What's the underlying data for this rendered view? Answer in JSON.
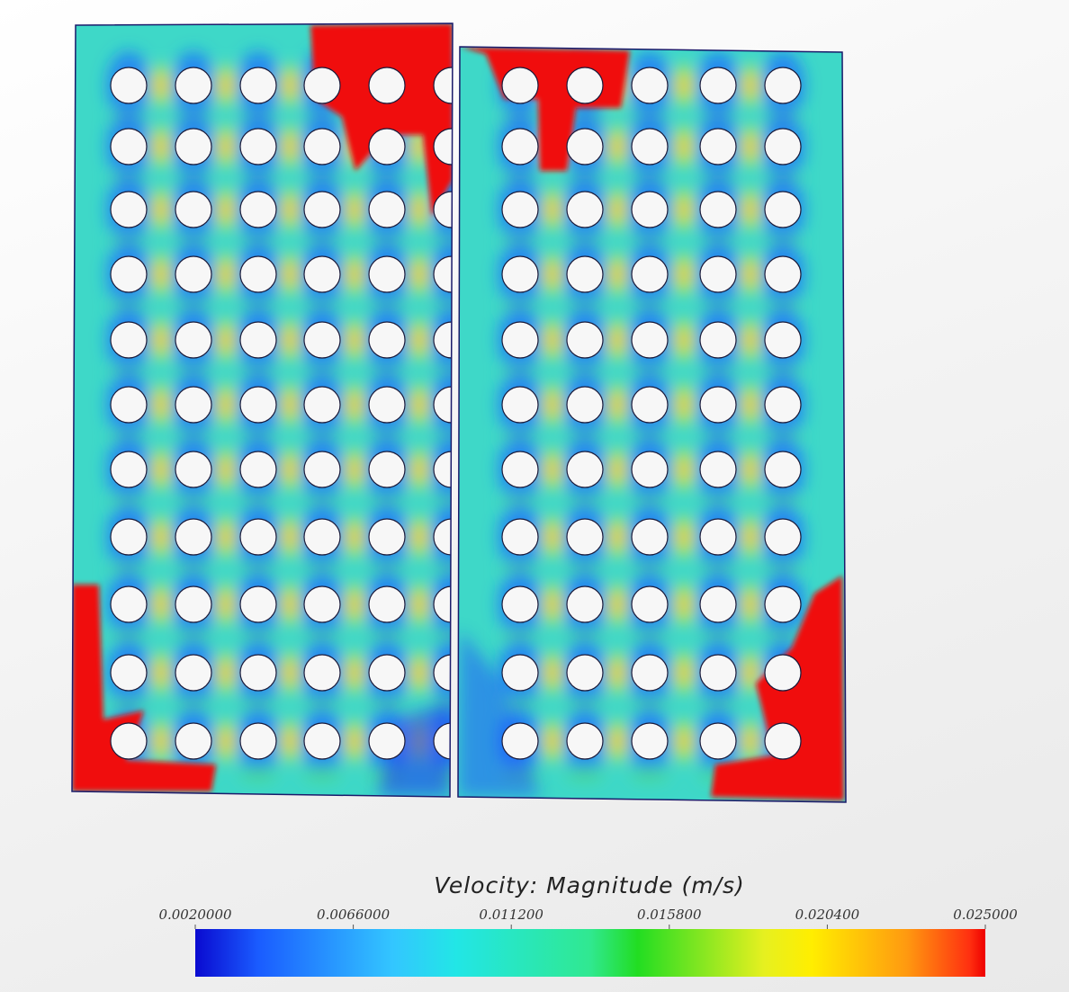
{
  "legend": {
    "title": "Velocity: Magnitude (m/s)",
    "range": [
      0.002,
      0.025
    ],
    "ticks": [
      {
        "value": 0.002,
        "label": "0.0020000"
      },
      {
        "value": 0.0066,
        "label": "0.0066000"
      },
      {
        "value": 0.0112,
        "label": "0.011200"
      },
      {
        "value": 0.0158,
        "label": "0.015800"
      },
      {
        "value": 0.0204,
        "label": "0.020400"
      },
      {
        "value": 0.025,
        "label": "0.025000"
      }
    ]
  }
}
